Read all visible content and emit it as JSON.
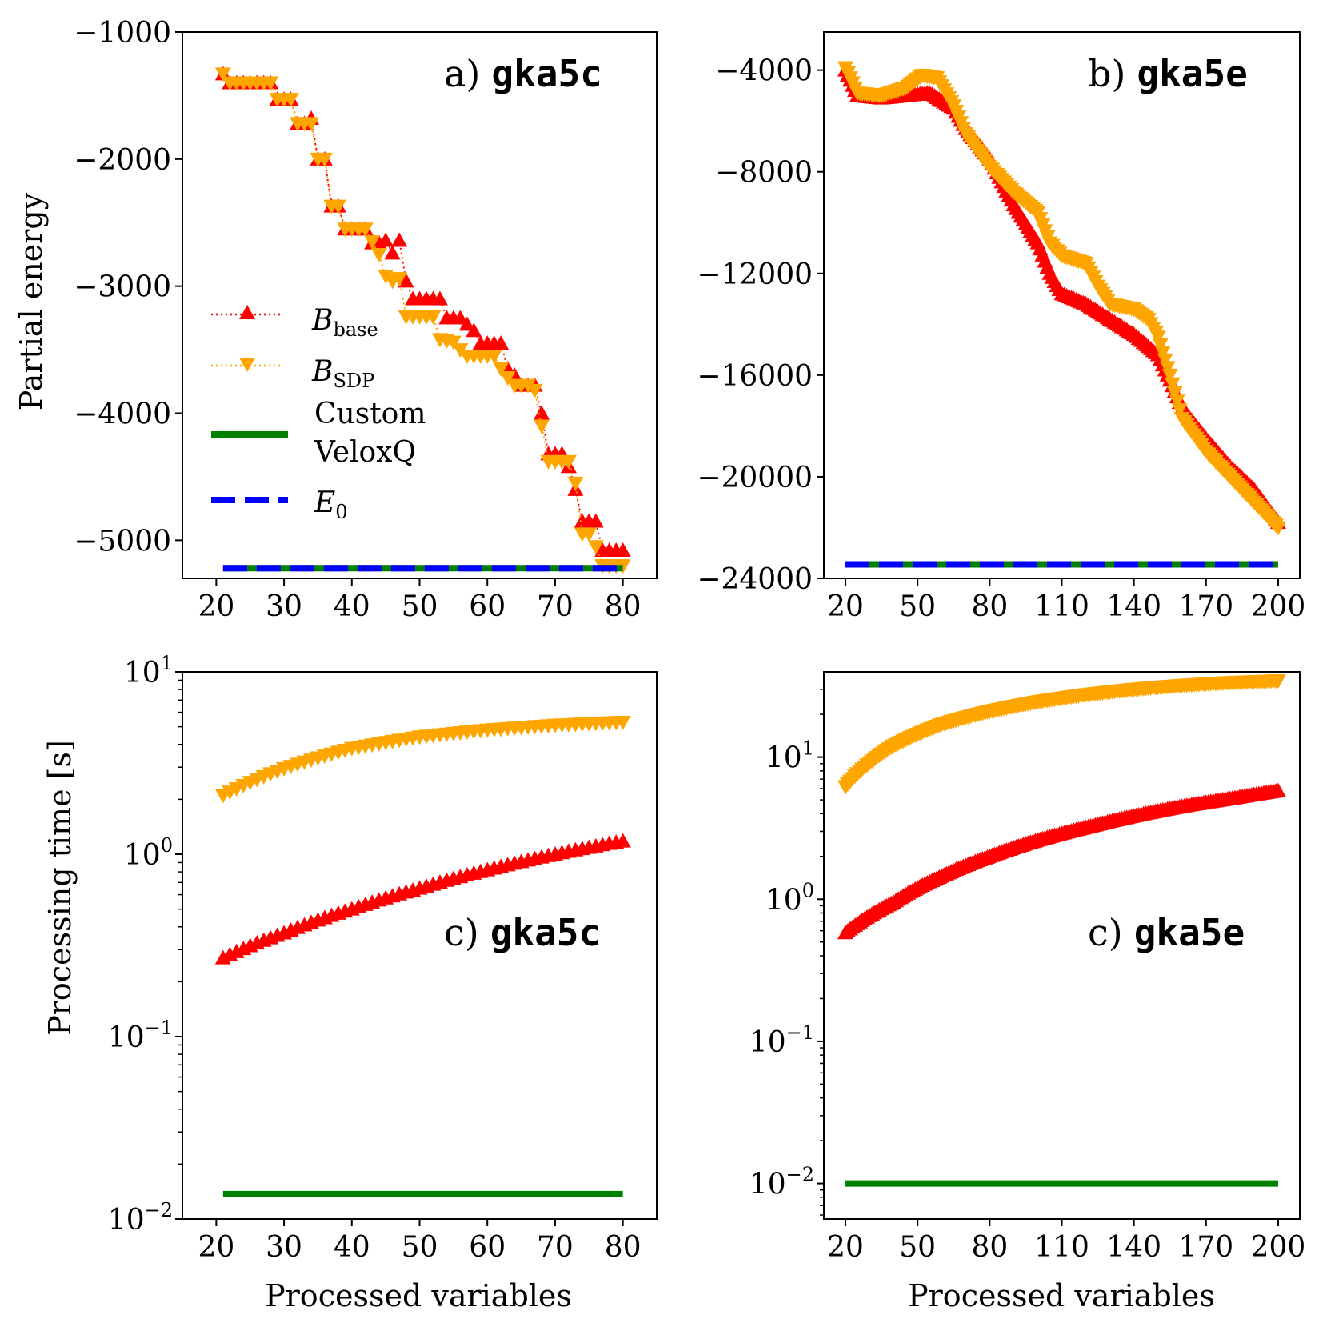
{
  "figure": {
    "ylabel_top": "Partial energy",
    "ylabel_bottom": "Processing time [s]",
    "xlabel_left": "Processed variables",
    "xlabel_right": "Processed variables"
  },
  "legend": {
    "b_base_main": "B",
    "b_base_sub": "base",
    "b_sdp_main": "B",
    "b_sdp_sub": "SDP",
    "custom_line1": "Custom",
    "custom_line2": "VeloxQ",
    "e0_main": "E",
    "e0_sub": "0"
  },
  "colors": {
    "b_base": "#ff0000",
    "b_sdp": "#ffa500",
    "custom": "#008000",
    "e0": "#0000ff"
  },
  "chart_data": [
    {
      "id": "a",
      "type": "line",
      "title_prefix": "a)",
      "title_name": "gka5c",
      "xlim": [
        15,
        85
      ],
      "ylim": [
        -5300,
        -1000
      ],
      "xticks": [
        20,
        30,
        40,
        50,
        60,
        70,
        80
      ],
      "yticks": [
        -1000,
        -2000,
        -3000,
        -4000,
        -5000
      ],
      "ytick_labels": [
        "−1000",
        "−2000",
        "−3000",
        "−4000",
        "−5000"
      ],
      "series": [
        {
          "name": "B_base",
          "marker": "triangle-up",
          "points": [
            [
              21,
              -1330
            ],
            [
              22,
              -1400
            ],
            [
              28,
              -1400
            ],
            [
              29,
              -1530
            ],
            [
              31,
              -1530
            ],
            [
              32,
              -1720
            ],
            [
              33,
              -1720
            ],
            [
              34,
              -1680
            ],
            [
              35,
              -2000
            ],
            [
              36,
              -2000
            ],
            [
              37,
              -2370
            ],
            [
              38,
              -2370
            ],
            [
              39,
              -2550
            ],
            [
              42,
              -2550
            ],
            [
              43,
              -2660
            ],
            [
              44,
              -2660
            ],
            [
              45,
              -2640
            ],
            [
              46,
              -2740
            ],
            [
              47,
              -2640
            ],
            [
              48,
              -2960
            ],
            [
              49,
              -3100
            ],
            [
              53,
              -3100
            ],
            [
              54,
              -3250
            ],
            [
              56,
              -3250
            ],
            [
              57,
              -3300
            ],
            [
              58,
              -3350
            ],
            [
              59,
              -3450
            ],
            [
              62,
              -3450
            ],
            [
              63,
              -3650
            ],
            [
              64,
              -3700
            ],
            [
              65,
              -3780
            ],
            [
              67,
              -3780
            ],
            [
              68,
              -4000
            ],
            [
              69,
              -4320
            ],
            [
              71,
              -4320
            ],
            [
              72,
              -4420
            ],
            [
              73,
              -4600
            ],
            [
              74,
              -4850
            ],
            [
              76,
              -4850
            ],
            [
              77,
              -5080
            ],
            [
              80,
              -5080
            ]
          ]
        },
        {
          "name": "B_SDP",
          "marker": "triangle-down",
          "points": [
            [
              21,
              -1330
            ],
            [
              22,
              -1400
            ],
            [
              28,
              -1400
            ],
            [
              29,
              -1530
            ],
            [
              31,
              -1530
            ],
            [
              32,
              -1720
            ],
            [
              34,
              -1720
            ],
            [
              35,
              -2000
            ],
            [
              36,
              -2000
            ],
            [
              37,
              -2370
            ],
            [
              38,
              -2370
            ],
            [
              39,
              -2550
            ],
            [
              42,
              -2550
            ],
            [
              43,
              -2650
            ],
            [
              44,
              -2750
            ],
            [
              45,
              -2920
            ],
            [
              46,
              -2960
            ],
            [
              47,
              -2940
            ],
            [
              48,
              -3240
            ],
            [
              52,
              -3240
            ],
            [
              53,
              -3420
            ],
            [
              55,
              -3440
            ],
            [
              56,
              -3500
            ],
            [
              57,
              -3550
            ],
            [
              61,
              -3550
            ],
            [
              62,
              -3650
            ],
            [
              63,
              -3720
            ],
            [
              64,
              -3780
            ],
            [
              66,
              -3780
            ],
            [
              67,
              -3820
            ],
            [
              68,
              -4100
            ],
            [
              69,
              -4380
            ],
            [
              72,
              -4380
            ],
            [
              73,
              -4550
            ],
            [
              74,
              -4950
            ],
            [
              75,
              -4950
            ],
            [
              76,
              -5050
            ],
            [
              77,
              -5200
            ],
            [
              80,
              -5200
            ]
          ]
        },
        {
          "name": "Custom VeloxQ",
          "style": "solid",
          "points": [
            [
              21,
              -5220
            ],
            [
              80,
              -5220
            ]
          ]
        },
        {
          "name": "E0",
          "style": "dashed",
          "points": [
            [
              21,
              -5220
            ],
            [
              80,
              -5220
            ]
          ]
        }
      ]
    },
    {
      "id": "b",
      "type": "line",
      "title_prefix": "b)",
      "title_name": "gka5e",
      "xlim": [
        11,
        209
      ],
      "ylim": [
        -24000,
        -2500
      ],
      "xticks": [
        20,
        50,
        80,
        110,
        140,
        170,
        200
      ],
      "yticks": [
        -4000,
        -8000,
        -12000,
        -16000,
        -20000,
        -24000
      ],
      "ytick_labels": [
        "−4000",
        "−8000",
        "−12000",
        "−16000",
        "−20000",
        "−24000"
      ],
      "series": [
        {
          "name": "B_base",
          "marker": "triangle-up",
          "points": [
            [
              20,
              -4000
            ],
            [
              25,
              -5000
            ],
            [
              35,
              -5100
            ],
            [
              45,
              -5000
            ],
            [
              55,
              -4900
            ],
            [
              60,
              -5200
            ],
            [
              65,
              -5500
            ],
            [
              70,
              -6300
            ],
            [
              80,
              -7500
            ],
            [
              90,
              -9300
            ],
            [
              100,
              -10800
            ],
            [
              105,
              -12000
            ],
            [
              110,
              -12800
            ],
            [
              120,
              -13200
            ],
            [
              130,
              -13800
            ],
            [
              140,
              -14400
            ],
            [
              150,
              -15200
            ],
            [
              155,
              -16200
            ],
            [
              160,
              -17300
            ],
            [
              170,
              -18500
            ],
            [
              180,
              -19600
            ],
            [
              190,
              -20500
            ],
            [
              200,
              -21800
            ]
          ]
        },
        {
          "name": "B_SDP",
          "marker": "triangle-down",
          "points": [
            [
              20,
              -3900
            ],
            [
              25,
              -4900
            ],
            [
              35,
              -5000
            ],
            [
              45,
              -4700
            ],
            [
              52,
              -4200
            ],
            [
              58,
              -4300
            ],
            [
              65,
              -5400
            ],
            [
              70,
              -6500
            ],
            [
              80,
              -7800
            ],
            [
              90,
              -8800
            ],
            [
              100,
              -9600
            ],
            [
              105,
              -10800
            ],
            [
              110,
              -11300
            ],
            [
              120,
              -11600
            ],
            [
              125,
              -12500
            ],
            [
              130,
              -13200
            ],
            [
              140,
              -13400
            ],
            [
              146,
              -13800
            ],
            [
              150,
              -14500
            ],
            [
              155,
              -16000
            ],
            [
              160,
              -17700
            ],
            [
              170,
              -19000
            ],
            [
              180,
              -20000
            ],
            [
              190,
              -21000
            ],
            [
              200,
              -22000
            ]
          ]
        },
        {
          "name": "Custom VeloxQ",
          "style": "solid",
          "points": [
            [
              20,
              -23450
            ],
            [
              200,
              -23450
            ]
          ]
        },
        {
          "name": "E0",
          "style": "dashed",
          "points": [
            [
              20,
              -23450
            ],
            [
              200,
              -23450
            ]
          ]
        }
      ]
    },
    {
      "id": "c",
      "type": "line",
      "yscale": "log",
      "title_prefix": "c)",
      "title_name": "gka5c",
      "xlim": [
        15,
        85
      ],
      "ylim_log10": [
        -2,
        1
      ],
      "xticks": [
        20,
        30,
        40,
        50,
        60,
        70,
        80
      ],
      "ytick_exponents": [
        1,
        0,
        -1,
        -2
      ],
      "series": [
        {
          "name": "B_SDP",
          "marker": "triangle-down",
          "points": [
            [
              21,
              2.1
            ],
            [
              30,
              2.95
            ],
            [
              40,
              3.8
            ],
            [
              50,
              4.4
            ],
            [
              60,
              4.8
            ],
            [
              70,
              5.1
            ],
            [
              80,
              5.3
            ]
          ]
        },
        {
          "name": "B_base",
          "marker": "triangle-up",
          "points": [
            [
              21,
              0.27
            ],
            [
              30,
              0.37
            ],
            [
              40,
              0.5
            ],
            [
              50,
              0.65
            ],
            [
              60,
              0.82
            ],
            [
              70,
              1.0
            ],
            [
              80,
              1.18
            ]
          ]
        },
        {
          "name": "Custom VeloxQ",
          "style": "solid",
          "points": [
            [
              21,
              0.0137
            ],
            [
              80,
              0.0137
            ]
          ]
        }
      ]
    },
    {
      "id": "d",
      "type": "line",
      "yscale": "log",
      "title_prefix": "c)",
      "title_name": "gka5e",
      "xlim": [
        11,
        209
      ],
      "ylim_log10": [
        -2.25,
        1.6
      ],
      "xticks": [
        20,
        50,
        80,
        110,
        140,
        170,
        200
      ],
      "ytick_exponents": [
        1,
        0,
        -1,
        -2
      ],
      "series": [
        {
          "name": "B_SDP",
          "marker": "triangle-down",
          "points": [
            [
              20,
              6.2
            ],
            [
              40,
              12
            ],
            [
              60,
              17
            ],
            [
              80,
              21
            ],
            [
              100,
              24.5
            ],
            [
              120,
              27.5
            ],
            [
              140,
              30
            ],
            [
              160,
              32
            ],
            [
              180,
              33.5
            ],
            [
              200,
              34.5
            ]
          ]
        },
        {
          "name": "B_base",
          "marker": "triangle-up",
          "points": [
            [
              20,
              0.58
            ],
            [
              40,
              0.95
            ],
            [
              60,
              1.45
            ],
            [
              80,
              2.0
            ],
            [
              100,
              2.6
            ],
            [
              120,
              3.2
            ],
            [
              140,
              3.85
            ],
            [
              160,
              4.5
            ],
            [
              180,
              5.1
            ],
            [
              200,
              5.8
            ]
          ]
        },
        {
          "name": "Custom VeloxQ",
          "style": "solid",
          "points": [
            [
              20,
              0.01
            ],
            [
              200,
              0.01
            ]
          ]
        }
      ]
    }
  ]
}
